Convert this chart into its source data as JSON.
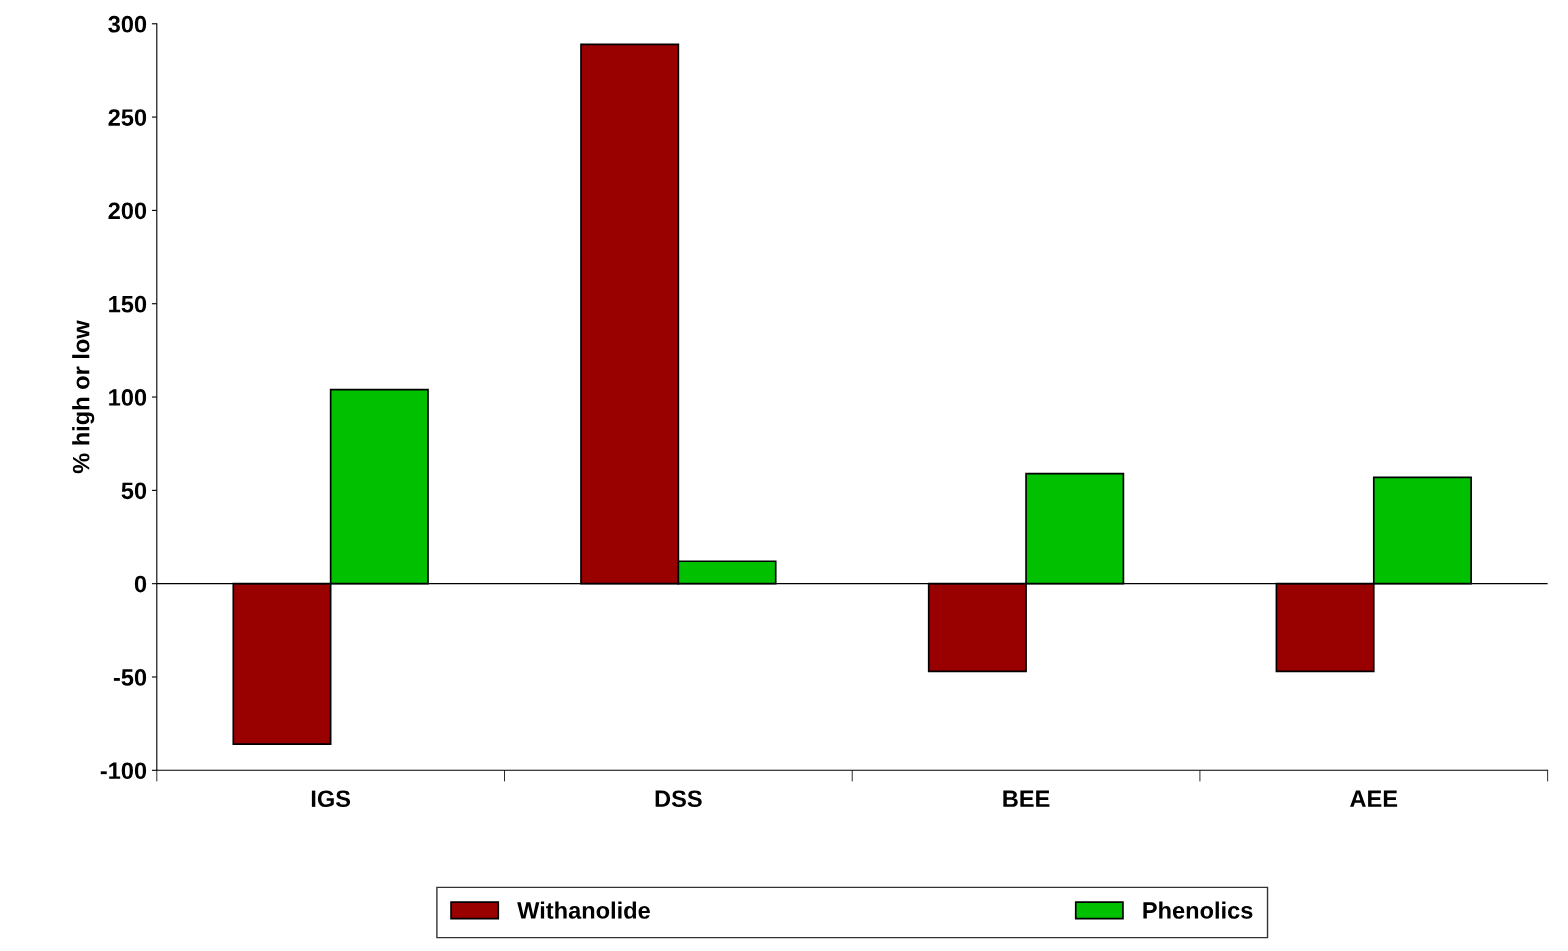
{
  "chart_data": {
    "type": "bar",
    "ylabel": "% high or low",
    "categories": [
      "IGS",
      "DSS",
      "BEE",
      "AEE"
    ],
    "series": [
      {
        "name": "Withanolide",
        "color": "#990000",
        "values": [
          -86,
          289,
          -47,
          -47
        ]
      },
      {
        "name": "Phenolics",
        "color": "#00c000",
        "values": [
          104,
          12,
          59,
          57
        ]
      }
    ],
    "ylim": [
      -100,
      300
    ],
    "yticks": [
      -100,
      -50,
      0,
      50,
      100,
      150,
      200,
      250,
      300
    ],
    "ref_lines": [
      {
        "axis": "y",
        "value": 0,
        "color": "#000000"
      }
    ],
    "legend": "bottom"
  }
}
